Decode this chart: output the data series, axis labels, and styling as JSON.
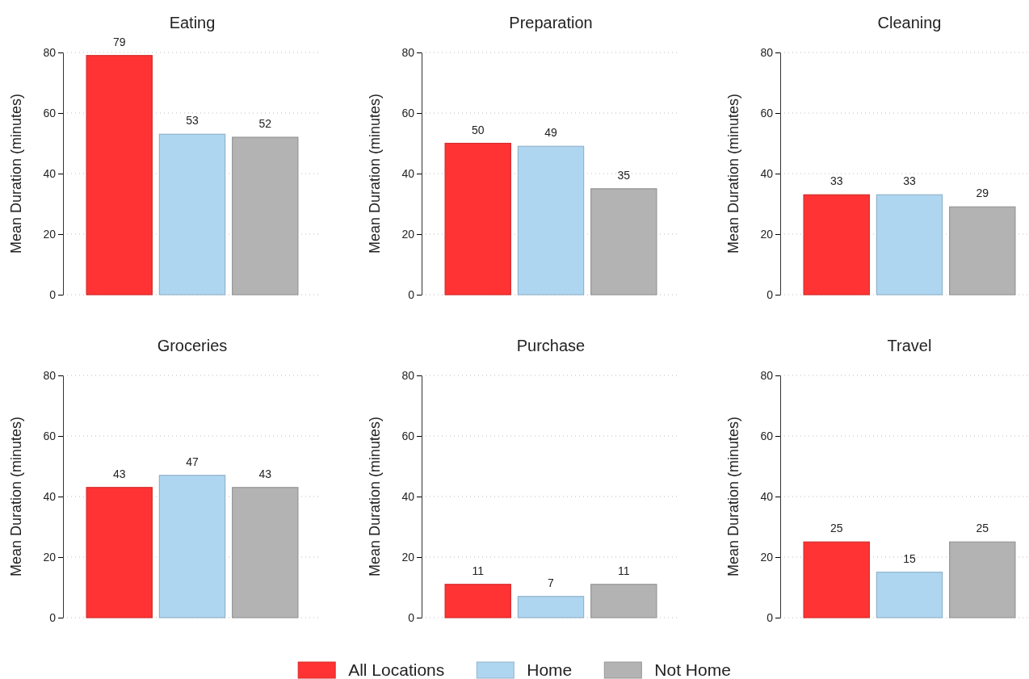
{
  "chart_data": [
    {
      "type": "bar",
      "title": "Eating",
      "ylabel": "Mean Duration (minutes)",
      "categories": [
        null
      ],
      "ylim": [
        0,
        80
      ],
      "yticks": [
        0,
        20,
        40,
        60,
        80
      ],
      "grid": "y",
      "data_labels": true,
      "series": [
        {
          "color": "#ff3333",
          "values": [
            79
          ]
        },
        {
          "color": "#aed6f1",
          "values": [
            53
          ]
        },
        {
          "color": "#b3b3b3",
          "values": [
            52
          ]
        }
      ]
    },
    {
      "type": "bar",
      "title": "Preparation",
      "ylabel": "Mean Duration (minutes)",
      "categories": [
        null
      ],
      "ylim": [
        0,
        80
      ],
      "yticks": [
        0,
        20,
        40,
        60,
        80
      ],
      "grid": "y",
      "data_labels": true,
      "series": [
        {
          "color": "#ff3333",
          "values": [
            50
          ]
        },
        {
          "color": "#aed6f1",
          "values": [
            49
          ]
        },
        {
          "color": "#b3b3b3",
          "values": [
            35
          ]
        }
      ]
    },
    {
      "type": "bar",
      "title": "Cleaning",
      "ylabel": "Mean Duration (minutes)",
      "categories": [
        null
      ],
      "ylim": [
        0,
        80
      ],
      "yticks": [
        0,
        20,
        40,
        60,
        80
      ],
      "grid": "y",
      "data_labels": true,
      "series": [
        {
          "color": "#ff3333",
          "values": [
            33
          ]
        },
        {
          "color": "#aed6f1",
          "values": [
            33
          ]
        },
        {
          "color": "#b3b3b3",
          "values": [
            29
          ]
        }
      ]
    },
    {
      "type": "bar",
      "title": "Groceries",
      "ylabel": "Mean Duration (minutes)",
      "categories": [
        null
      ],
      "ylim": [
        0,
        80
      ],
      "yticks": [
        0,
        20,
        40,
        60,
        80
      ],
      "grid": "y",
      "data_labels": true,
      "series": [
        {
          "color": "#ff3333",
          "values": [
            43
          ]
        },
        {
          "color": "#aed6f1",
          "values": [
            47
          ]
        },
        {
          "color": "#b3b3b3",
          "values": [
            43
          ]
        }
      ]
    },
    {
      "type": "bar",
      "title": "Purchase",
      "ylabel": "Mean Duration (minutes)",
      "categories": [
        null
      ],
      "ylim": [
        0,
        80
      ],
      "yticks": [
        0,
        20,
        40,
        60,
        80
      ],
      "grid": "y",
      "data_labels": true,
      "series": [
        {
          "color": "#ff3333",
          "values": [
            11
          ]
        },
        {
          "color": "#aed6f1",
          "values": [
            7
          ]
        },
        {
          "color": "#b3b3b3",
          "values": [
            11
          ]
        }
      ]
    },
    {
      "type": "bar",
      "title": "Travel",
      "ylabel": "Mean Duration (minutes)",
      "categories": [
        null
      ],
      "ylim": [
        0,
        80
      ],
      "yticks": [
        0,
        20,
        40,
        60,
        80
      ],
      "grid": "y",
      "data_labels": true,
      "legend": "bottom",
      "series": [
        {
          "name": "All Locations",
          "color": "#ff3333",
          "values": [
            25
          ]
        },
        {
          "name": "Home",
          "color": "#aed6f1",
          "values": [
            15
          ]
        },
        {
          "name": "Not Home",
          "color": "#b3b3b3",
          "values": [
            25
          ]
        }
      ]
    }
  ]
}
